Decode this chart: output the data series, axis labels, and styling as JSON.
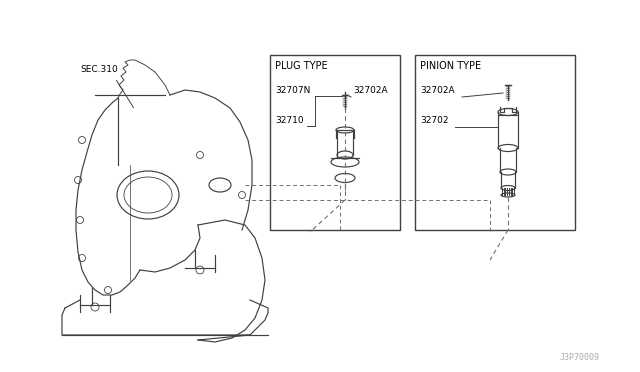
{
  "background_color": "#ffffff",
  "line_color": "#404040",
  "dashed_color": "#707070",
  "text_color": "#000000",
  "watermark": "J3P70009",
  "sec_label": "SEC.310",
  "plug_type_title": "PLUG TYPE",
  "pinion_type_title": "PINION TYPE",
  "plug_labels": [
    "32707N",
    "32702A",
    "32710"
  ],
  "pinion_labels": [
    "32702A",
    "32702"
  ]
}
